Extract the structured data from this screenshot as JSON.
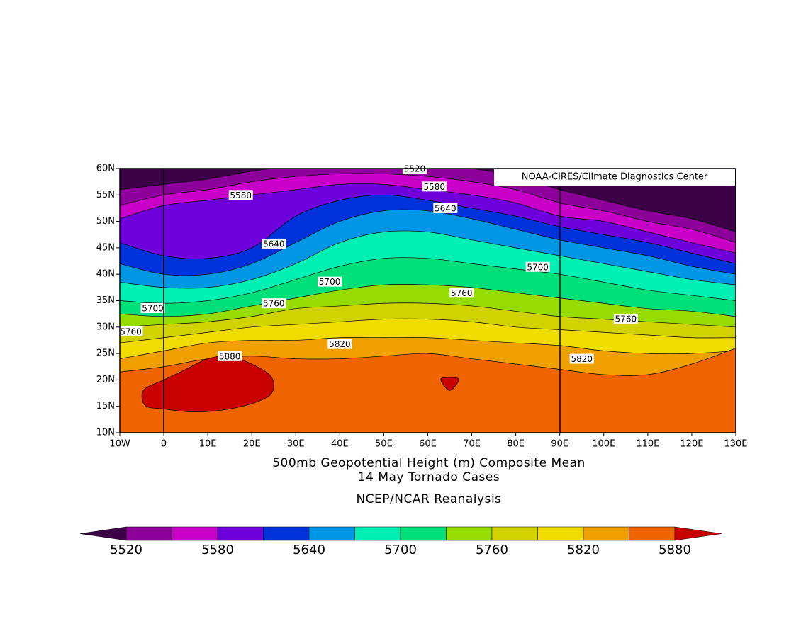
{
  "chart_data": {
    "type": "contour",
    "credit": "NOAA-CIRES/Climate Diagnostics Center",
    "title": "500mb Geopotential Height (m) Composite Mean",
    "subtitle": "14 May Tornado Cases",
    "source": "NCEP/NCAR Reanalysis",
    "xlim": [
      -10,
      130
    ],
    "ylim": [
      10,
      60
    ],
    "xticks": [
      {
        "value": -10,
        "label": "10W"
      },
      0,
      {
        "value": 10,
        "label": "10E"
      },
      {
        "value": 20,
        "label": "20E"
      },
      {
        "value": 30,
        "label": "30E"
      },
      {
        "value": 40,
        "label": "40E"
      },
      {
        "value": 50,
        "label": "50E"
      },
      {
        "value": 60,
        "label": "60E"
      },
      {
        "value": 70,
        "label": "70E"
      },
      {
        "value": 80,
        "label": "80E"
      },
      {
        "value": 90,
        "label": "90E"
      },
      {
        "value": 100,
        "label": "100E"
      },
      {
        "value": 110,
        "label": "110E"
      },
      {
        "value": 120,
        "label": "120E"
      },
      {
        "value": 130,
        "label": "130E"
      }
    ],
    "yticks": [
      {
        "value": 10,
        "label": "10N"
      },
      {
        "value": 15,
        "label": "15N"
      },
      {
        "value": 20,
        "label": "20N"
      },
      {
        "value": 25,
        "label": "25N"
      },
      {
        "value": 30,
        "label": "30N"
      },
      {
        "value": 35,
        "label": "35N"
      },
      {
        "value": 40,
        "label": "40N"
      },
      {
        "value": 45,
        "label": "45N"
      },
      {
        "value": 50,
        "label": "50N"
      },
      {
        "value": 55,
        "label": "55N"
      },
      {
        "value": 60,
        "label": "60N"
      }
    ],
    "contours": {
      "levels": [
        5520,
        5550,
        5580,
        5610,
        5640,
        5670,
        5700,
        5730,
        5760,
        5790,
        5820,
        5850,
        5880
      ],
      "colors": [
        "#3c0046",
        "#8c0099",
        "#c800c8",
        "#6e00dc",
        "#0032dc",
        "#0096e6",
        "#00f0b4",
        "#00e07a",
        "#96dc00",
        "#d2d200",
        "#f0dc00",
        "#f0a000",
        "#f06400",
        "#c80000"
      ],
      "lons": [
        -10,
        0,
        10,
        20,
        30,
        40,
        50,
        60,
        70,
        80,
        90,
        100,
        110,
        120,
        130
      ],
      "lats": [
        [
          56,
          57,
          58,
          59.5,
          60.5,
          61,
          61,
          60.5,
          60,
          58.5,
          56,
          54,
          52,
          50.5,
          48
        ],
        [
          53,
          55,
          56,
          57.5,
          58.5,
          59,
          59,
          58.5,
          57.5,
          56,
          53.5,
          52,
          50,
          48.5,
          46
        ],
        [
          50.5,
          53,
          54,
          55,
          56,
          57,
          57,
          56,
          55,
          53.5,
          51,
          50,
          48,
          46,
          44
        ],
        [
          46,
          43.5,
          43,
          45,
          51,
          54,
          55,
          54,
          52.5,
          51,
          49,
          47.5,
          46,
          44,
          42
        ],
        [
          42,
          40,
          40,
          42,
          46,
          50,
          52,
          52,
          50.5,
          48.5,
          46.5,
          45,
          43.5,
          41.5,
          40
        ],
        [
          38.5,
          37.5,
          37.5,
          39,
          42,
          46,
          48,
          48,
          46.5,
          45,
          43.5,
          42,
          40.5,
          39,
          38
        ],
        [
          35,
          34.5,
          35,
          36.5,
          39,
          41.5,
          43,
          43,
          42,
          41,
          40,
          38.5,
          37,
          36,
          35
        ],
        [
          32.5,
          32,
          32.5,
          34,
          35.5,
          37,
          38,
          38,
          37.5,
          36.5,
          35.5,
          34.5,
          33.5,
          33,
          32
        ],
        [
          30,
          30.5,
          31,
          32,
          33.5,
          34,
          34.5,
          34.5,
          34,
          33,
          32,
          31.5,
          31,
          30.5,
          30
        ],
        [
          27,
          28,
          29,
          30,
          30.5,
          31,
          31.5,
          31.5,
          31,
          30,
          29.5,
          29,
          28.5,
          28,
          28
        ],
        [
          24,
          25.5,
          27,
          27.5,
          27.5,
          28,
          28,
          28,
          27.5,
          27,
          26.5,
          25.5,
          25,
          25,
          25.5
        ],
        [
          21.5,
          22.5,
          24,
          24.5,
          24,
          24,
          24.5,
          25,
          24,
          23,
          22,
          21,
          21,
          23,
          26
        ],
        [
          5,
          5,
          5,
          5,
          5,
          5,
          5,
          5,
          5,
          5,
          5,
          5,
          5,
          5,
          5
        ]
      ],
      "closed": [
        {
          "lons": [
            -5,
            -4,
            0,
            5,
            10,
            15,
            20,
            24,
            25,
            24,
            20,
            15,
            10,
            5,
            0,
            -4
          ],
          "lats": [
            17,
            15,
            14.5,
            14,
            14,
            14.5,
            15.5,
            17,
            19,
            21,
            23,
            24.5,
            24,
            22,
            20,
            18.5
          ]
        },
        {
          "lons": [
            63,
            67,
            65
          ],
          "lats": [
            20.2,
            20.2,
            18
          ]
        }
      ],
      "labels": [
        {
          "value": 5520,
          "lon": 57,
          "lat": 60
        },
        {
          "value": 5580,
          "lon": 17.5,
          "lat": 55
        },
        {
          "value": 5580,
          "lon": 61.5,
          "lat": 56.6
        },
        {
          "value": 5640,
          "lon": 64,
          "lat": 52.5
        },
        {
          "value": 5640,
          "lon": 25,
          "lat": 45.8
        },
        {
          "value": 5700,
          "lon": -2.5,
          "lat": 33.6
        },
        {
          "value": 5700,
          "lon": 37.7,
          "lat": 38.6
        },
        {
          "value": 5700,
          "lon": 85,
          "lat": 41.4
        },
        {
          "value": 5760,
          "lon": -7.5,
          "lat": 29.2
        },
        {
          "value": 5760,
          "lon": 25,
          "lat": 34.5
        },
        {
          "value": 5760,
          "lon": 67.7,
          "lat": 36.5
        },
        {
          "value": 5760,
          "lon": 105,
          "lat": 31.6
        },
        {
          "value": 5820,
          "lon": 40,
          "lat": 26.8
        },
        {
          "value": 5820,
          "lon": 95,
          "lat": 24
        },
        {
          "value": 5880,
          "lon": 15,
          "lat": 24.5
        }
      ]
    },
    "colorbar_ticks": [
      5520,
      5580,
      5640,
      5700,
      5760,
      5820,
      5880
    ]
  }
}
